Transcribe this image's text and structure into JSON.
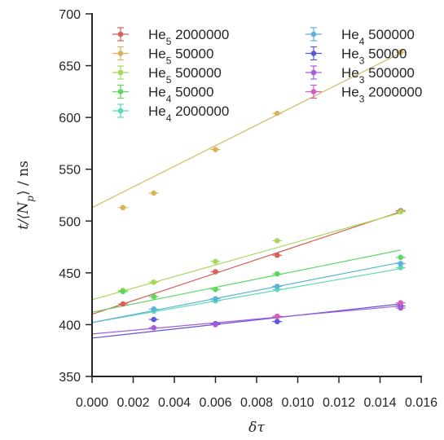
{
  "chart_data": {
    "type": "scatter",
    "xlabel": "δτ",
    "ylabel": "t/⟨N_p⟩ / ns",
    "xlim": [
      0.0,
      0.016
    ],
    "ylim": [
      350,
      700
    ],
    "x_ticks": [
      "0.000",
      "0.002",
      "0.004",
      "0.006",
      "0.008",
      "0.010",
      "0.012",
      "0.014",
      "0.016"
    ],
    "y_ticks": [
      "350",
      "400",
      "450",
      "500",
      "550",
      "600",
      "650",
      "700"
    ],
    "grid": false,
    "legend_position": "top",
    "series": [
      {
        "name": "He5 2000000",
        "label_base": "He",
        "label_sub": "5",
        "label_rest": " 2000000",
        "color": "#d9605a",
        "x": [
          0.0015,
          0.006,
          0.009,
          0.015
        ],
        "y": [
          420,
          451,
          467,
          510
        ],
        "fit": {
          "intercept": 410,
          "slope": 6600
        }
      },
      {
        "name": "He5 50000",
        "label_base": "He",
        "label_sub": "5",
        "label_rest": " 50000",
        "color": "#d8b35a",
        "x": [
          0.0015,
          0.003,
          0.006,
          0.009,
          0.015
        ],
        "y": [
          513,
          527,
          569,
          604,
          663
        ],
        "fit": {
          "intercept": 513,
          "slope": 9950
        }
      },
      {
        "name": "He5 500000",
        "label_base": "He",
        "label_sub": "5",
        "label_rest": " 500000",
        "color": "#a7d85c",
        "x": [
          0.0015,
          0.003,
          0.006,
          0.009,
          0.015
        ],
        "y": [
          433,
          441,
          461,
          481,
          509
        ],
        "fit": {
          "intercept": 424,
          "slope": 5600
        }
      },
      {
        "name": "He4 50000",
        "label_base": "He",
        "label_sub": "4",
        "label_rest": " 50000",
        "color": "#5cd85e",
        "x": [
          0.0015,
          0.003,
          0.006,
          0.009,
          0.015
        ],
        "y": [
          432,
          427,
          434,
          449,
          465
        ],
        "fit": {
          "intercept": 412,
          "slope": 4000
        }
      },
      {
        "name": "He4 2000000",
        "label_base": "He",
        "label_sub": "4",
        "label_rest": " 2000000",
        "color": "#5cd8b4",
        "x": [
          0.003,
          0.006,
          0.009,
          0.015
        ],
        "y": [
          413,
          423,
          434,
          455
        ],
        "fit": {
          "intercept": 402,
          "slope": 3470
        }
      },
      {
        "name": "He4 500000",
        "label_base": "He",
        "label_sub": "4",
        "label_rest": " 500000",
        "color": "#5cb2d8",
        "x": [
          0.003,
          0.006,
          0.009,
          0.015
        ],
        "y": [
          415,
          425,
          437,
          459
        ],
        "fit": {
          "intercept": 402,
          "slope": 3870
        }
      },
      {
        "name": "He3 50000",
        "label_base": "He",
        "label_sub": "3",
        "label_rest": " 50000",
        "color": "#5c56d8",
        "x": [
          0.003,
          0.006,
          0.009,
          0.015
        ],
        "y": [
          405,
          401,
          403,
          418
        ],
        "fit": {
          "intercept": 387,
          "slope": 2200
        }
      },
      {
        "name": "He3 500000",
        "label_base": "He",
        "label_sub": "3",
        "label_rest": " 500000",
        "color": "#a85cd8",
        "x": [
          0.003,
          0.006,
          0.009,
          0.015
        ],
        "y": [
          397,
          400,
          408,
          416
        ],
        "fit": {
          "intercept": 391,
          "slope": 1800
        }
      },
      {
        "name": "He3 2000000",
        "label_base": "He",
        "label_sub": "3",
        "label_rest": " 2000000",
        "color": "#d85cc0",
        "x": [
          0.009,
          0.015
        ],
        "y": [
          408,
          421
        ],
        "fit": null
      }
    ]
  }
}
